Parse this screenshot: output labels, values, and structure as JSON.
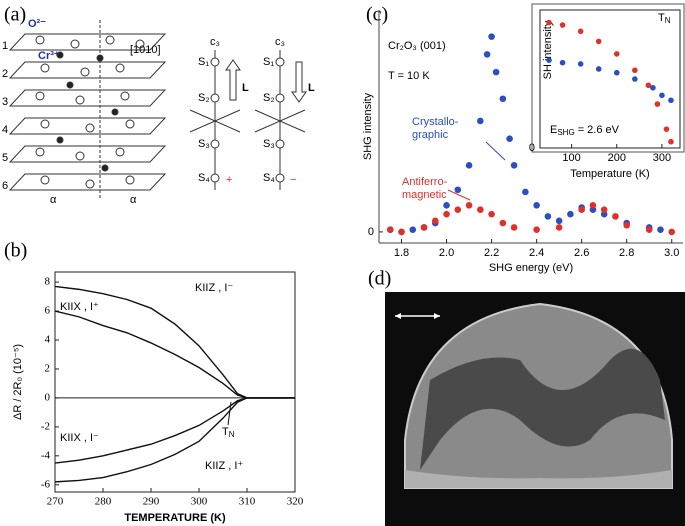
{
  "panel_labels": [
    "(a)",
    "(b)",
    "(c)",
    "(d)"
  ],
  "diagram_a": {
    "ions": [
      "O²⁻",
      "Cr³⁺"
    ],
    "direction": "[1010]",
    "layers": [
      "1",
      "2",
      "3",
      "4",
      "5",
      "6"
    ],
    "spin_axis": "c₃",
    "spins": [
      "S₁",
      "S₂",
      "S₃",
      "S₄"
    ],
    "vector": "L",
    "signs": [
      "+",
      "−"
    ],
    "angle": "α"
  },
  "chart_data": [
    {
      "type": "line",
      "xlabel": "TEMPERATURE (K)",
      "ylabel": "ΔR / 2R₀ (10⁻⁵)",
      "x": [
        270,
        275,
        280,
        285,
        290,
        295,
        300,
        305,
        308,
        310,
        315,
        320
      ],
      "series": [
        {
          "name": "KIIZ , I⁻",
          "color": "#111111",
          "values": [
            7.7,
            7.5,
            7.2,
            6.8,
            6.2,
            5.1,
            3.6,
            1.6,
            0.3,
            0,
            0,
            0
          ]
        },
        {
          "name": "KIIX , I⁺",
          "color": "#111111",
          "values": [
            6.0,
            5.6,
            5.0,
            4.5,
            3.8,
            3.0,
            2.1,
            1.0,
            0.2,
            0,
            0,
            0
          ]
        },
        {
          "name": "KIIX , I⁻",
          "color": "#111111",
          "values": [
            -4.5,
            -4.3,
            -4.0,
            -3.6,
            -3.2,
            -2.6,
            -1.9,
            -0.9,
            -0.2,
            0,
            0,
            0
          ]
        },
        {
          "name": "KIIZ , I⁺",
          "color": "#111111",
          "values": [
            -5.8,
            -5.7,
            -5.5,
            -5.1,
            -4.6,
            -3.9,
            -3.0,
            -1.4,
            -0.3,
            0,
            0,
            0
          ]
        }
      ],
      "tn": {
        "main": "T",
        "sub": "N"
      },
      "xlim": [
        270,
        320
      ],
      "xticks": [
        270,
        280,
        290,
        300,
        310,
        320
      ],
      "ylim": [
        -6.5,
        8.7
      ],
      "yticks": [
        -6,
        -4,
        -2,
        0,
        2,
        4,
        6,
        8
      ]
    },
    {
      "type": "scatter",
      "xlabel": "SHG energy (eV)",
      "ylabel": "SHG intensity",
      "annotations": [
        "Cr₂O₃ (001)",
        "T = 10 K"
      ],
      "series": [
        {
          "name": [
            "Crystallo-",
            "graphic"
          ],
          "color": "#2a4fc0",
          "x": [
            1.75,
            1.8,
            1.85,
            1.9,
            1.95,
            2.0,
            2.05,
            2.1,
            2.15,
            2.18,
            2.2,
            2.22,
            2.25,
            2.28,
            2.3,
            2.35,
            2.4,
            2.45,
            2.5,
            2.55,
            2.6,
            2.65,
            2.7,
            2.8,
            2.9,
            2.95
          ],
          "values": [
            0.01,
            0.0,
            0.01,
            0.02,
            0.04,
            0.12,
            0.19,
            0.3,
            0.5,
            0.8,
            0.88,
            0.72,
            0.6,
            0.42,
            0.3,
            0.18,
            0.12,
            0.07,
            0.05,
            0.08,
            0.11,
            0.1,
            0.08,
            0.04,
            0.02,
            0.01
          ]
        },
        {
          "name": [
            "Antiferro-",
            "magnetic"
          ],
          "color": "#e0302a",
          "x": [
            1.75,
            1.8,
            1.9,
            1.95,
            2.0,
            2.05,
            2.1,
            2.15,
            2.2,
            2.25,
            2.3,
            2.4,
            2.5,
            2.6,
            2.65,
            2.7,
            2.75,
            2.8,
            2.9,
            3.0
          ],
          "values": [
            0.01,
            0.0,
            0.02,
            0.05,
            0.08,
            0.1,
            0.12,
            0.1,
            0.08,
            0.04,
            0.02,
            0.01,
            0.02,
            0.1,
            0.12,
            0.1,
            0.07,
            0.03,
            0.01,
            0.0
          ]
        }
      ],
      "xlim": [
        1.7,
        3.05
      ],
      "xticks": [
        1.8,
        {
          "value": 2,
          "label": "2.0"
        },
        2.2,
        2.4,
        2.6,
        2.8,
        {
          "value": 3,
          "label": "3.0"
        }
      ],
      "ylim": [
        -0.05,
        1
      ],
      "yticks": [
        0
      ]
    },
    {
      "type": "scatter",
      "xlabel": "Temperature (K)",
      "ylabel": "SH intensity",
      "tn": {
        "main": "T",
        "sub": "N"
      },
      "energy": {
        "main": "E",
        "sub": "SHG",
        "rest": "= 2.6 eV"
      },
      "series": [
        {
          "color": "#e0302a",
          "x": [
            50,
            80,
            120,
            160,
            200,
            240,
            270,
            290,
            310,
            320
          ],
          "values": [
            1.0,
            0.98,
            0.93,
            0.85,
            0.75,
            0.62,
            0.5,
            0.35,
            0.15,
            0.05
          ]
        },
        {
          "color": "#2a4fc0",
          "x": [
            50,
            80,
            120,
            160,
            200,
            240,
            280,
            300,
            320
          ],
          "values": [
            0.7,
            0.68,
            0.67,
            0.63,
            0.6,
            0.55,
            0.48,
            0.42,
            0.38
          ]
        }
      ],
      "xlim": [
        30,
        340
      ],
      "xticks": [
        100,
        200,
        300
      ],
      "ylim": [
        0,
        1.1
      ],
      "yticks": [
        0
      ]
    }
  ]
}
